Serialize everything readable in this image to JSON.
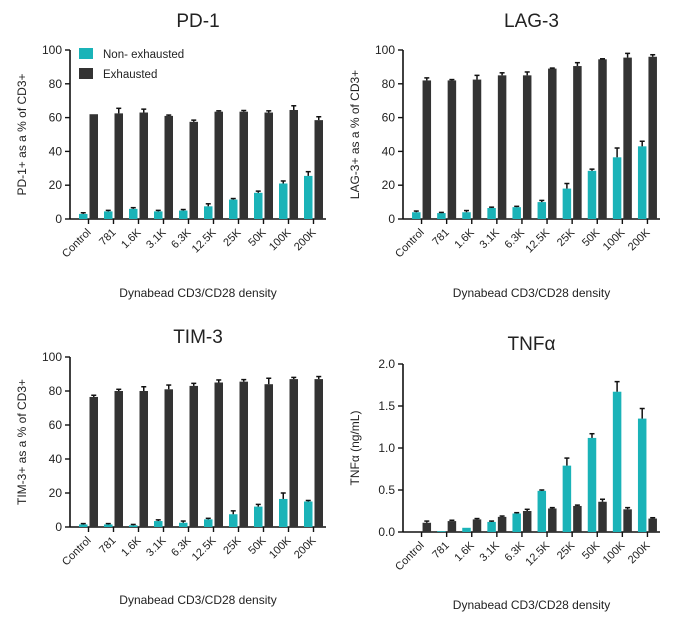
{
  "colors": {
    "non_exhausted": "#1ab3b8",
    "exhausted": "#333333"
  },
  "chart_data": [
    {
      "type": "bar",
      "title": "PD-1",
      "xlabel": "Dynabead CD3/CD28 density",
      "ylabel": "PD-1+ as a % of CD3+",
      "ylim": [
        0,
        100
      ],
      "yticks": [
        "0",
        "20",
        "40",
        "60",
        "80",
        "100"
      ],
      "categories": [
        "Control",
        "781",
        "1.6K",
        "3.1K",
        "6.3K",
        "12.5K",
        "25K",
        "50K",
        "100K",
        "200K"
      ],
      "legend": "top-left",
      "series": [
        {
          "name": "Non- exhausted",
          "values": [
            3,
            4.5,
            6,
            4.5,
            5,
            7.5,
            11.5,
            15.5,
            21,
            25.5
          ],
          "errors": [
            0.7,
            0.6,
            0.7,
            0.6,
            0.6,
            1.5,
            0.6,
            1,
            1.5,
            2.5
          ]
        },
        {
          "name": "Exhausted",
          "values": [
            62,
            62.5,
            63,
            61,
            57.5,
            63.5,
            63.5,
            63,
            64.5,
            58.5
          ],
          "errors": [
            0,
            3,
            2,
            0.5,
            1,
            0.5,
            0.7,
            1,
            2.5,
            2
          ]
        }
      ]
    },
    {
      "type": "bar",
      "title": "LAG-3",
      "xlabel": "Dynabead CD3/CD28 density",
      "ylabel": "LAG-3+ as a % of CD3+",
      "ylim": [
        0,
        100
      ],
      "yticks": [
        "0",
        "20",
        "40",
        "60",
        "80",
        "100"
      ],
      "categories": [
        "Control",
        "781",
        "1.6K",
        "3.1K",
        "6.3K",
        "12.5K",
        "25K",
        "50K",
        "100K",
        "200K"
      ],
      "series": [
        {
          "values": [
            4,
            3.5,
            4,
            6.5,
            7,
            10,
            18,
            28.5,
            36.5,
            43
          ],
          "errors": [
            0.7,
            0.4,
            1,
            0.5,
            0.5,
            1,
            3,
            1,
            5.5,
            3
          ]
        },
        {
          "values": [
            82,
            82,
            82.5,
            85,
            85,
            89,
            90.5,
            94.5,
            95.5,
            96
          ],
          "errors": [
            1.5,
            0.5,
            2.5,
            1.5,
            2,
            0.3,
            2,
            0.3,
            2.5,
            1.2
          ]
        }
      ]
    },
    {
      "type": "bar",
      "title": "TIM-3",
      "xlabel": "Dynabead CD3/CD28 density",
      "ylabel": "TIM-3+ as a % of CD3+",
      "ylim": [
        0,
        100
      ],
      "yticks": [
        "0",
        "20",
        "40",
        "60",
        "80",
        "100"
      ],
      "categories": [
        "Control",
        "781",
        "1.6K",
        "3.1K",
        "6.3K",
        "12.5K",
        "25K",
        "50K",
        "100K",
        "200K"
      ],
      "series": [
        {
          "values": [
            1.5,
            1.5,
            1,
            3.5,
            2.5,
            4.5,
            7.5,
            12,
            16.5,
            15
          ],
          "errors": [
            0.5,
            0.5,
            0.5,
            0.7,
            1,
            0.6,
            2,
            1.3,
            3.5,
            0.6
          ]
        },
        {
          "values": [
            76.5,
            80,
            80,
            81,
            83,
            85,
            85.5,
            84,
            87,
            87
          ],
          "errors": [
            1,
            1,
            2.5,
            2.5,
            1.5,
            1.5,
            1.2,
            3.5,
            1,
            1.5
          ]
        }
      ]
    },
    {
      "type": "bar",
      "title": "TNFα",
      "xlabel": "Dynabead CD3/CD28 density",
      "ylabel": "TNFα (ng/mL)",
      "ylim": [
        0,
        2.0
      ],
      "yticks": [
        "0.0",
        "0.5",
        "1.0",
        "1.5",
        "2.0"
      ],
      "categories": [
        "Control",
        "781",
        "1.6K",
        "3.1K",
        "6.3K",
        "12.5K",
        "25K",
        "50K",
        "100K",
        "200K"
      ],
      "series": [
        {
          "values": [
            0,
            0.01,
            0.05,
            0.12,
            0.22,
            0.49,
            0.79,
            1.12,
            1.67,
            1.35
          ],
          "errors": [
            0,
            0,
            0,
            0.01,
            0.01,
            0.01,
            0.09,
            0.05,
            0.12,
            0.12
          ]
        },
        {
          "values": [
            0.11,
            0.13,
            0.15,
            0.18,
            0.25,
            0.28,
            0.31,
            0.36,
            0.27,
            0.16
          ],
          "errors": [
            0.02,
            0.01,
            0.01,
            0.01,
            0.02,
            0.01,
            0.01,
            0.03,
            0.02,
            0.01
          ]
        }
      ]
    }
  ]
}
